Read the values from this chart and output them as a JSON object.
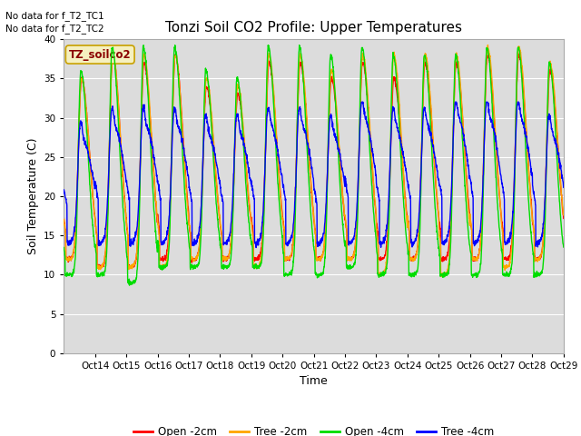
{
  "title": "Tonzi Soil CO2 Profile: Upper Temperatures",
  "ylabel": "Soil Temperature (C)",
  "xlabel": "Time",
  "no_data_text": [
    "No data for f_T2_TC1",
    "No data for f_T2_TC2"
  ],
  "legend_label": "TZ_soilco2",
  "xlim": [
    13,
    29
  ],
  "ylim": [
    0,
    40
  ],
  "yticks": [
    0,
    5,
    10,
    15,
    20,
    25,
    30,
    35,
    40
  ],
  "xtick_positions": [
    14,
    15,
    16,
    17,
    18,
    19,
    20,
    21,
    22,
    23,
    24,
    25,
    26,
    27,
    28,
    29
  ],
  "xtick_labels": [
    "Oct 14",
    "Oct 15",
    "Oct 16",
    "Oct 17",
    "Oct 18",
    "Oct 19",
    "Oct 20",
    "Oct 21",
    "Oct 22",
    "Oct 23",
    "Oct 24",
    "Oct 25",
    "Oct 26",
    "Oct 27",
    "Oct 28",
    "Oct 29"
  ],
  "colors": {
    "open_2cm": "#ff0000",
    "tree_2cm": "#ffa500",
    "open_4cm": "#00dd00",
    "tree_4cm": "#0000ff"
  },
  "bg_color": "#dcdcdc",
  "line_width": 1.0,
  "grid_color": "#ffffff",
  "title_fontsize": 11,
  "label_fontsize": 9,
  "tick_fontsize": 7.5
}
